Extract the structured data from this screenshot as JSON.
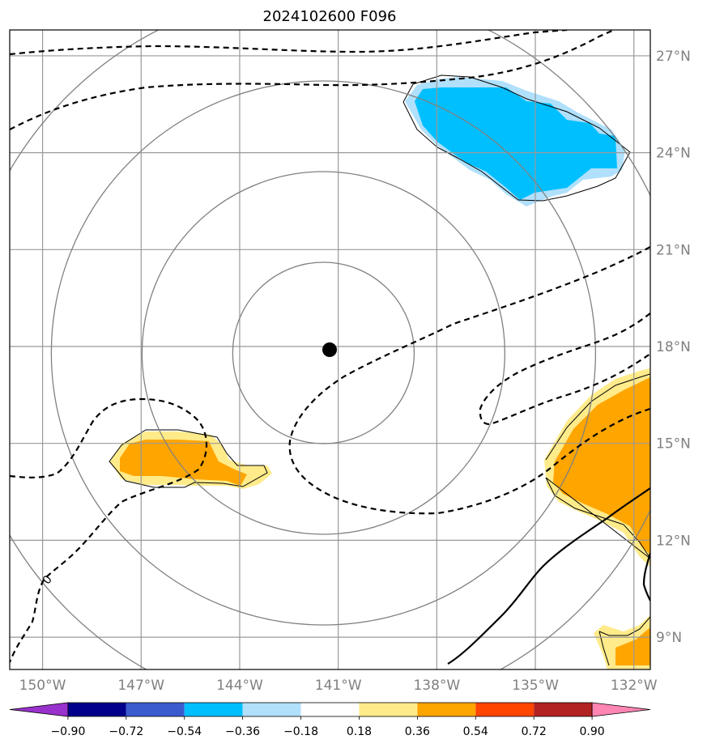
{
  "title": "2024102600 F096",
  "map": {
    "lon_range": [
      -151,
      -131.5
    ],
    "lat_range": [
      8,
      27.8
    ],
    "lon_ticks": [
      -150,
      -147,
      -144,
      -141,
      -138,
      -135,
      -132
    ],
    "lon_tick_labels": [
      "150°W",
      "147°W",
      "144°W",
      "141°W",
      "138°W",
      "135°W",
      "132°W"
    ],
    "lat_ticks": [
      9,
      12,
      15,
      18,
      21,
      24,
      27
    ],
    "lat_tick_labels": [
      "9°N",
      "12°N",
      "15°N",
      "18°N",
      "21°N",
      "24°N",
      "27°N"
    ],
    "gridlines": true,
    "gridline_color": "#999999",
    "center_marker": {
      "lon": -141.45,
      "lat": 17.8,
      "color": "#000000",
      "name": "storm-center-marker"
    },
    "range_rings": {
      "count": 4,
      "color": "#808080"
    },
    "contour_labels": [
      {
        "text": "0"
      }
    ]
  },
  "colorbar": {
    "tick_labels": [
      "−0.90",
      "−0.72",
      "−0.54",
      "−0.36",
      "−0.18",
      "0.18",
      "0.36",
      "0.54",
      "0.72",
      "0.90"
    ],
    "colors": [
      "#9932cc",
      "#00008b",
      "#3a5bcd",
      "#00bfff",
      "#b0e0fb",
      "#ffffff",
      "#ffeb8a",
      "#ffa500",
      "#ff4500",
      "#b22222",
      "#ff85b3"
    ],
    "extend": "both"
  },
  "fill_colors": {
    "light_blue": "#b0e0fb",
    "blue": "#00bfff",
    "light_yellow": "#ffeb8a",
    "orange": "#ffa500"
  }
}
